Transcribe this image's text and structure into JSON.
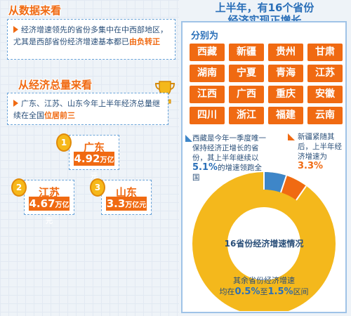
{
  "left": {
    "section1_title": "从数据来看",
    "box1_text": "经济增速领先的省份多集中在中西部地区，尤其是西部省份经济增速基本都已",
    "box1_highlight": "由负转正",
    "section2_title": "从经济总量来看",
    "box2_text": "广东、江苏、山东今年上半年经济总量继续在全国",
    "box2_highlight": "位居前三",
    "ranks": [
      {
        "rank": "1",
        "name": "广东",
        "value": "4.92",
        "unit": "万亿元"
      },
      {
        "rank": "2",
        "name": "江苏",
        "value": "4.67",
        "unit": "万亿元"
      },
      {
        "rank": "3",
        "name": "山东",
        "value": "3.3",
        "unit": "万亿元"
      }
    ]
  },
  "right": {
    "title_line1": "上半年，有16个省份",
    "title_line2": "经济实现正增长",
    "subtitle": "分别为",
    "provinces": [
      "西藏",
      "新疆",
      "贵州",
      "甘肃",
      "湖南",
      "宁夏",
      "青海",
      "江苏",
      "江西",
      "广西",
      "重庆",
      "安徽",
      "四川",
      "浙江",
      "福建",
      "云南"
    ],
    "note_xizang_text": "西藏是今年一季度唯一保持经济正增长的省份，其上半年继续以",
    "note_xizang_value": "5.1%",
    "note_xizang_tail": "的增速领跑全国",
    "note_xinjiang_text": "新疆紧随其后，上半年经济增速为",
    "note_xinjiang_value": "3.3%",
    "donut_label": "16省份经济增速情况",
    "bottom_text_1": "其余省份经济增速",
    "bottom_text_2_pre": "均在",
    "bottom_text_2_a": "0.5%",
    "bottom_text_2_mid": "至",
    "bottom_text_2_b": "1.5%",
    "bottom_text_2_post": "区间",
    "colors": {
      "accent": "#f06a12",
      "blue": "#3e86c8",
      "gold": "#f4b81c"
    }
  }
}
